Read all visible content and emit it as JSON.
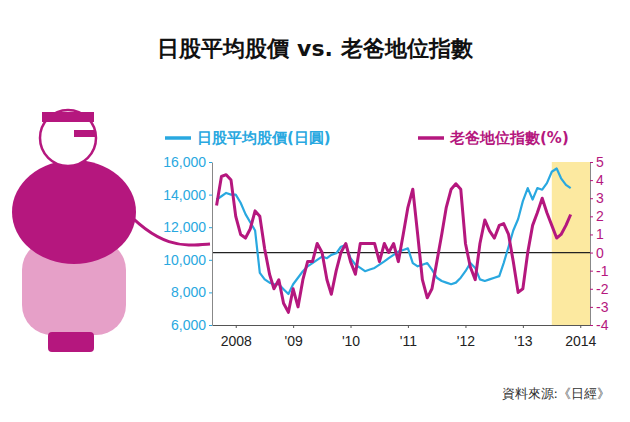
{
  "chart_data": {
    "type": "line",
    "title": "日股平均股價 vs. 老爸地位指數",
    "source": "資料來源:《日經》",
    "x": [
      "2008-03",
      "2008-04",
      "2008-05",
      "2008-06",
      "2008-07",
      "2008-08",
      "2008-09",
      "2008-10",
      "2008-11",
      "2008-12",
      "2009-01",
      "2009-02",
      "2009-03",
      "2009-04",
      "2009-05",
      "2009-06",
      "2009-07",
      "2009-08",
      "2009-09",
      "2009-10",
      "2009-11",
      "2009-12",
      "2010-01",
      "2010-02",
      "2010-03",
      "2010-04",
      "2010-05",
      "2010-06",
      "2010-07",
      "2010-08",
      "2010-09",
      "2010-10",
      "2010-11",
      "2010-12",
      "2011-01",
      "2011-02",
      "2011-03",
      "2011-04",
      "2011-05",
      "2011-06",
      "2011-07",
      "2011-08",
      "2011-09",
      "2011-10",
      "2011-11",
      "2011-12",
      "2012-01",
      "2012-02",
      "2012-03",
      "2012-04",
      "2012-05",
      "2012-06",
      "2012-07",
      "2012-08",
      "2012-09",
      "2012-10",
      "2012-11",
      "2012-12",
      "2013-01",
      "2013-02",
      "2013-03",
      "2013-04",
      "2013-05",
      "2013-06",
      "2013-07",
      "2013-08",
      "2013-09",
      "2013-10",
      "2013-11",
      "2013-12",
      "2014-01",
      "2014-02",
      "2014-03",
      "2014-04",
      "2014-05"
    ],
    "series": [
      {
        "name": "日股平均股價(日圓)",
        "color": "#29a8e0",
        "axis": "y",
        "values": [
          13700,
          13900,
          14100,
          14000,
          14000,
          13500,
          12800,
          12300,
          11800,
          9200,
          8800,
          8600,
          8500,
          8500,
          8200,
          7900,
          8500,
          8900,
          9300,
          9600,
          9800,
          10000,
          10200,
          10100,
          10300,
          10400,
          10800,
          10900,
          10100,
          9700,
          9500,
          9300,
          9400,
          9500,
          9700,
          9900,
          10100,
          10300,
          10500,
          10600,
          10700,
          9800,
          9600,
          9700,
          9800,
          9400,
          8900,
          8700,
          8600,
          8500,
          8600,
          8900,
          9300,
          9800,
          9500,
          8800,
          8700,
          8800,
          8900,
          9000,
          9800,
          10800,
          11800,
          12500,
          13600,
          14400,
          13700,
          14400,
          14300,
          14700,
          15400,
          15600,
          15000,
          14600,
          14400
        ]
      },
      {
        "name": "老爸地位指數(%)",
        "color": "#b5177e",
        "axis": "y2",
        "values": [
          2.6,
          4.2,
          4.3,
          4.0,
          2.0,
          1.0,
          0.8,
          1.3,
          2.3,
          2.0,
          0.2,
          -1.2,
          -2.0,
          -1.5,
          -2.8,
          -3.3,
          -2.0,
          -3.0,
          -1.5,
          -0.5,
          -0.5,
          0.5,
          0,
          -1.5,
          -2.3,
          -1.0,
          0,
          0.5,
          -0.5,
          -1.2,
          0.5,
          0.5,
          0.5,
          0.5,
          -0.5,
          0.5,
          0,
          0.5,
          -0.5,
          1.0,
          2.5,
          3.5,
          1.0,
          -1.5,
          -2.5,
          -2.0,
          -0.5,
          1.0,
          2.5,
          3.5,
          3.8,
          3.5,
          0.5,
          -0.8,
          -1.5,
          0.5,
          1.8,
          1.2,
          0.8,
          1.5,
          1.6,
          1.0,
          -0.5,
          -2.2,
          -2.0,
          0,
          1.5,
          2.2,
          3.0,
          2.2,
          1.5,
          0.8,
          1.0,
          1.5,
          2.1
        ]
      }
    ],
    "xlim": [
      "2008-02",
      "2014-09"
    ],
    "xticks": [
      {
        "value": "2008-07",
        "label": "2008"
      },
      {
        "value": "2009-07",
        "label": "'09"
      },
      {
        "value": "2010-07",
        "label": "'10"
      },
      {
        "value": "2011-07",
        "label": "'11"
      },
      {
        "value": "2012-07",
        "label": "'12"
      },
      {
        "value": "2013-07",
        "label": "'13"
      },
      {
        "value": "2014-07",
        "label": "2014"
      }
    ],
    "ylim": [
      6000,
      16000
    ],
    "yticks": [
      {
        "value": 6000,
        "label": "6,000"
      },
      {
        "value": 8000,
        "label": "8,000"
      },
      {
        "value": 10000,
        "label": "10,000"
      },
      {
        "value": 12000,
        "label": "12,000"
      },
      {
        "value": 14000,
        "label": "14,000"
      },
      {
        "value": 16000,
        "label": "16,000"
      }
    ],
    "y2lim": [
      -4,
      5
    ],
    "y2ticks": [
      -4,
      -3,
      -2,
      -1,
      0,
      1,
      2,
      3,
      4,
      5
    ],
    "reference_lines": [
      {
        "axis": "y2",
        "value": 0
      }
    ],
    "highlight": {
      "x": [
        "2014-01",
        "2014-09"
      ],
      "color": "#fce9a0"
    },
    "grid": false,
    "legend": "top"
  }
}
